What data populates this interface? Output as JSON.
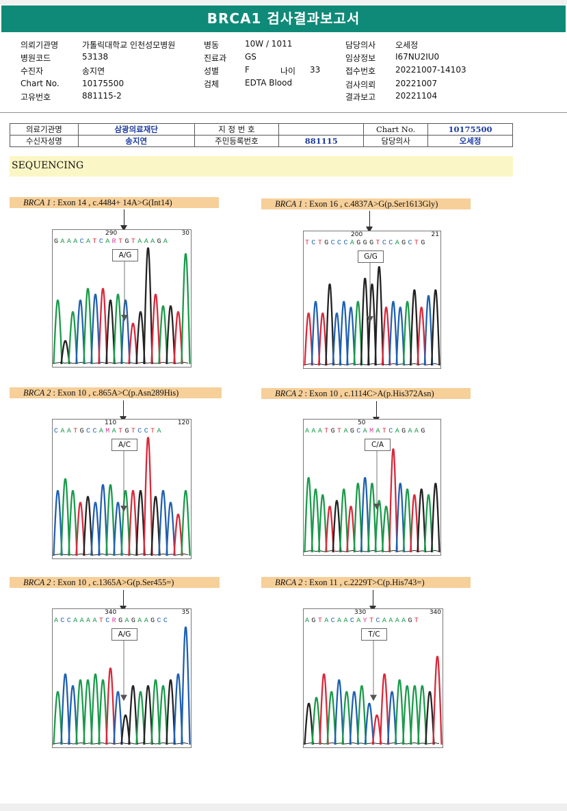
{
  "title": "BRCA1 검사결과보고서",
  "patient": {
    "col1": [
      {
        "label": "의뢰기관명",
        "value": "가톨릭대학교 인천성모병원"
      },
      {
        "label": "병원코드",
        "value": "53138"
      },
      {
        "label": "수진자",
        "value": "송지연"
      },
      {
        "label": "Chart No.",
        "value": "10175500"
      },
      {
        "label": "고유번호",
        "value": "881115-2"
      }
    ],
    "col2": [
      {
        "label": "병동",
        "value": "10W / 1011"
      },
      {
        "label": "진료과",
        "value": "GS"
      },
      {
        "label": "성별",
        "value": "F"
      },
      {
        "label": "검체",
        "value": "EDTA Blood"
      }
    ],
    "age_label": "나이",
    "age_value": "33",
    "col3": [
      {
        "label": "담당의사",
        "value": "오세정"
      },
      {
        "label": "임상정보",
        "value": "I67NU2IU0"
      },
      {
        "label": "접수번호",
        "value": "20221007-14103"
      },
      {
        "label": "검사의뢰",
        "value": "20221007"
      },
      {
        "label": "결과보고",
        "value": "20221104"
      }
    ]
  },
  "ref_table": {
    "r1": [
      "의료기관명",
      "삼광의료재단",
      "지 정 번 호",
      "",
      "Chart No.",
      "10175500"
    ],
    "r2": [
      "수신자성명",
      "송지연",
      "주민등록번호",
      "881115",
      "담당의사",
      "오세정"
    ]
  },
  "section": "SEQUENCING",
  "panels": [
    {
      "gene": "BRCA 1",
      "desc": " : Exon 14 , c.4484+ 14A>G(Int14)",
      "seq": "GAAACATCARTGTAAAGA",
      "pos1": "290",
      "pos2": "30",
      "call": "A/G",
      "peaks": [
        [
          "g",
          0.55
        ],
        [
          "k",
          0.2
        ],
        [
          "g",
          0.45
        ],
        [
          "b",
          0.55
        ],
        [
          "g",
          0.65
        ],
        [
          "b",
          0.6
        ],
        [
          "r",
          0.65
        ],
        [
          "k",
          0.55
        ],
        [
          "g",
          0.6
        ],
        [
          "b",
          0.55
        ],
        [
          "r",
          0.35
        ],
        [
          "k",
          0.45
        ],
        [
          "k",
          1.0
        ],
        [
          "r",
          0.6
        ],
        [
          "g",
          0.5
        ],
        [
          "k",
          0.5
        ],
        [
          "r",
          0.45
        ],
        [
          "g",
          0.95
        ]
      ]
    },
    {
      "gene": "BRCA 1",
      "desc": " : Exon 16 , c.4837A>G(p.Ser1613Gly)",
      "seq": "TCTGCCCAGGGTCCAGCTG",
      "pos1": "200",
      "pos2": "21",
      "call": "G/G",
      "peaks": [
        [
          "r",
          0.45
        ],
        [
          "b",
          0.55
        ],
        [
          "r",
          0.45
        ],
        [
          "k",
          0.7
        ],
        [
          "b",
          0.45
        ],
        [
          "b",
          0.55
        ],
        [
          "b",
          0.5
        ],
        [
          "g",
          0.55
        ],
        [
          "k",
          0.75
        ],
        [
          "k",
          0.7
        ],
        [
          "k",
          0.85
        ],
        [
          "r",
          0.5
        ],
        [
          "b",
          0.55
        ],
        [
          "b",
          0.5
        ],
        [
          "g",
          0.55
        ],
        [
          "k",
          0.65
        ],
        [
          "r",
          0.5
        ],
        [
          "b",
          0.6
        ],
        [
          "k",
          0.65
        ]
      ]
    },
    {
      "gene": "BRCA 2",
      "desc": " : Exon 10 , c.865A>C(p.Asn289His)",
      "seq": "CAATGCCAMATGTCCTA",
      "pos1": "110",
      "pos2": "120",
      "call": "A/C",
      "peaks": [
        [
          "b",
          0.55
        ],
        [
          "g",
          0.65
        ],
        [
          "g",
          0.55
        ],
        [
          "r",
          0.45
        ],
        [
          "k",
          0.5
        ],
        [
          "b",
          0.45
        ],
        [
          "b",
          0.6
        ],
        [
          "g",
          0.6
        ],
        [
          "b",
          0.45
        ],
        [
          "g",
          0.55
        ],
        [
          "r",
          0.55
        ],
        [
          "k",
          0.55
        ],
        [
          "r",
          1.0
        ],
        [
          "k",
          0.5
        ],
        [
          "b",
          0.55
        ],
        [
          "b",
          0.45
        ],
        [
          "r",
          0.35
        ],
        [
          "g",
          0.55
        ]
      ]
    },
    {
      "gene": "BRCA 2",
      "desc": " : Exon 10 , c.1114C>A(p.His372Asn)",
      "seq": "AAATGTAGCAMATCAGAAG",
      "pos1": "50",
      "pos2": "",
      "call": "C/A",
      "peaks": [
        [
          "g",
          0.65
        ],
        [
          "g",
          0.55
        ],
        [
          "g",
          0.5
        ],
        [
          "r",
          0.4
        ],
        [
          "k",
          0.45
        ],
        [
          "g",
          0.55
        ],
        [
          "r",
          0.4
        ],
        [
          "g",
          0.6
        ],
        [
          "b",
          0.65
        ],
        [
          "g",
          0.6
        ],
        [
          "g",
          0.45
        ],
        [
          "g",
          0.4
        ],
        [
          "r",
          0.9
        ],
        [
          "b",
          0.6
        ],
        [
          "g",
          0.55
        ],
        [
          "r",
          0.5
        ],
        [
          "k",
          0.55
        ],
        [
          "g",
          0.5
        ],
        [
          "k",
          0.6
        ]
      ]
    },
    {
      "gene": "BRCA 2",
      "desc": " : Exon 10 , c.1365A>G(p.Ser455=)",
      "seq": "ACCAAAATCRGAGAAGCC",
      "pos1": "340",
      "pos2": "35",
      "call": "A/G",
      "peaks": [
        [
          "g",
          0.45
        ],
        [
          "b",
          0.6
        ],
        [
          "b",
          0.5
        ],
        [
          "g",
          0.55
        ],
        [
          "g",
          0.55
        ],
        [
          "g",
          0.6
        ],
        [
          "g",
          0.55
        ],
        [
          "r",
          0.65
        ],
        [
          "b",
          0.45
        ],
        [
          "k",
          0.25
        ],
        [
          "k",
          0.5
        ],
        [
          "g",
          0.45
        ],
        [
          "k",
          0.5
        ],
        [
          "g",
          0.55
        ],
        [
          "g",
          0.5
        ],
        [
          "k",
          0.55
        ],
        [
          "b",
          0.6
        ],
        [
          "b",
          1.0
        ]
      ]
    },
    {
      "gene": "BRCA 2",
      "desc": " : Exon 11 , c.2229T>C(p.His743=)",
      "seq": "AGTACAACAYTCAAAAGT",
      "pos1": "330",
      "pos2": "340",
      "call": "T/C",
      "peaks": [
        [
          "k",
          0.35
        ],
        [
          "g",
          0.4
        ],
        [
          "r",
          0.6
        ],
        [
          "g",
          0.45
        ],
        [
          "b",
          0.55
        ],
        [
          "g",
          0.45
        ],
        [
          "b",
          0.45
        ],
        [
          "g",
          0.5
        ],
        [
          "b",
          0.35
        ],
        [
          "r",
          0.25
        ],
        [
          "r",
          0.6
        ],
        [
          "b",
          0.45
        ],
        [
          "g",
          0.55
        ],
        [
          "g",
          0.5
        ],
        [
          "g",
          0.5
        ],
        [
          "g",
          0.5
        ],
        [
          "k",
          0.45
        ],
        [
          "r",
          0.75
        ]
      ]
    }
  ]
}
